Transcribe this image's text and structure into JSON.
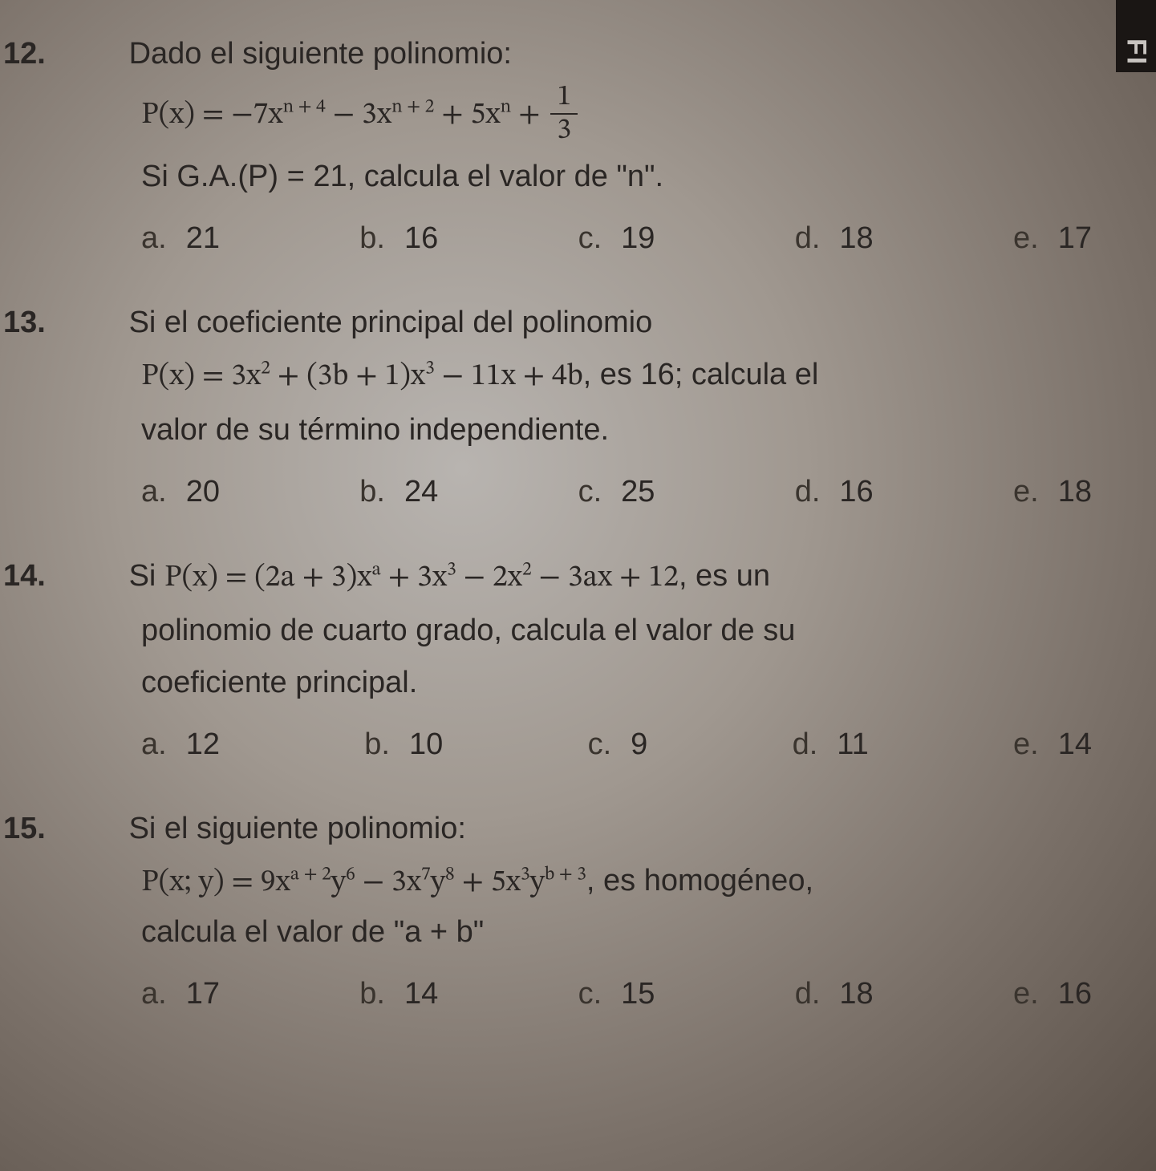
{
  "page": {
    "background_gradient": [
      "#b8b4b0",
      "#a09890",
      "#7a7068",
      "#5a5048"
    ],
    "text_color": "#2a2624",
    "font_family": "Segoe UI",
    "base_fontsize_pt": 29,
    "edge_tab_text": "FI",
    "edge_tab_bg": "#1a1614",
    "edge_tab_fg": "#c8c4c0"
  },
  "problems": [
    {
      "number": "12.",
      "prompt": "Dado el siguiente polinomio:",
      "formula_plain": "P(x) = −7x^(n+4) − 3x^(n+2) + 5x^n + 1/3",
      "formula_parts": {
        "lhs": "P(x) = ",
        "t1_coef": "−7x",
        "t1_exp": "n + 4",
        "t2_op": " − ",
        "t2_coef": "3x",
        "t2_exp": "n + 2",
        "t3_op": " + ",
        "t3_coef": "5x",
        "t3_exp": "n",
        "t4_op": " + ",
        "frac_num": "1",
        "frac_den": "3"
      },
      "continuation": "Si G.A.(P) = 21, calcula el valor de \"n\".",
      "options": [
        {
          "letter": "a.",
          "value": "21"
        },
        {
          "letter": "b.",
          "value": "16"
        },
        {
          "letter": "c.",
          "value": "19"
        },
        {
          "letter": "d.",
          "value": "18"
        },
        {
          "letter": "e.",
          "value": "17"
        }
      ]
    },
    {
      "number": "13.",
      "prompt": "Si el coeficiente principal del polinomio",
      "formula_plain": "P(x) = 3x^2 + (3b + 1)x^3 − 11x + 4b, es 16; calcula el",
      "formula_parts": {
        "lhs": "P(x) = ",
        "t1": "3x",
        "t1_exp": "2",
        "t2_op": " + (3b + 1)x",
        "t2_exp": "3",
        "t3": " − 11x + 4b",
        "tail": ", es 16; calcula el"
      },
      "continuation": "valor de su término independiente.",
      "options": [
        {
          "letter": "a.",
          "value": "20"
        },
        {
          "letter": "b.",
          "value": "24"
        },
        {
          "letter": "c.",
          "value": "25"
        },
        {
          "letter": "d.",
          "value": "16"
        },
        {
          "letter": "e.",
          "value": "18"
        }
      ]
    },
    {
      "number": "14.",
      "prompt_prefix": "Si ",
      "formula_plain": "P(x) = (2a + 3)x^a + 3x^3 − 2x^2 − 3ax + 12",
      "formula_parts": {
        "lhs": "P(x) = (2a + 3)x",
        "e1": "a",
        "t2": " + 3x",
        "e2": "3",
        "t3": " − 2x",
        "e3": "2",
        "t4": " − 3ax + 12"
      },
      "prompt_suffix": ", es un",
      "line2": "polinomio de cuarto grado, calcula el valor de su",
      "line3": "coeficiente principal.",
      "options": [
        {
          "letter": "a.",
          "value": "12"
        },
        {
          "letter": "b.",
          "value": "10"
        },
        {
          "letter": "c.",
          "value": "9"
        },
        {
          "letter": "d.",
          "value": "11"
        },
        {
          "letter": "e.",
          "value": "14"
        }
      ]
    },
    {
      "number": "15.",
      "prompt": "Si el siguiente polinomio:",
      "formula_plain": "P(x; y) = 9x^(a+2)y^6 − 3x^7y^8 + 5x^3y^(b+3), es homogéneo,",
      "formula_parts": {
        "lhs": "P(x; y) = 9x",
        "e1": "a + 2",
        "y1": "y",
        "e1y": "6",
        "t2": " − 3x",
        "e2": "7",
        "y2": "y",
        "e2y": "8",
        "t3": " + 5x",
        "e3": "3",
        "y3": "y",
        "e3y": "b + 3",
        "tail": ", es homogéneo,"
      },
      "continuation": "calcula el valor de \"a + b\"",
      "options": [
        {
          "letter": "a.",
          "value": "17"
        },
        {
          "letter": "b.",
          "value": "14"
        },
        {
          "letter": "c.",
          "value": "15"
        },
        {
          "letter": "d.",
          "value": "18"
        },
        {
          "letter": "e.",
          "value": "16"
        }
      ]
    }
  ]
}
